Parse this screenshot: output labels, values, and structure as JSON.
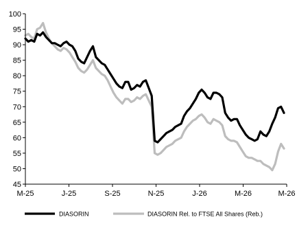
{
  "chart_data": {
    "type": "line",
    "y_ticks": [
      45,
      50,
      55,
      60,
      65,
      70,
      75,
      80,
      85,
      90,
      95,
      100
    ],
    "ylim": [
      45,
      100
    ],
    "x_ticks": [
      "M-25",
      "J-25",
      "S-25",
      "N-25",
      "J-26",
      "M-26",
      "M-26"
    ],
    "grid": false,
    "legend_placement": "bottom",
    "series": [
      {
        "name": "DIASORIN",
        "color": "#000000",
        "values": [
          92.0,
          91.0,
          91.5,
          91.0,
          93.5,
          93.0,
          94.0,
          92.5,
          91.5,
          90.5,
          90.5,
          90.0,
          89.5,
          90.5,
          91.0,
          90.0,
          89.5,
          88.0,
          85.5,
          84.5,
          84.0,
          86.0,
          88.0,
          89.5,
          86.0,
          85.0,
          84.0,
          83.5,
          82.0,
          80.5,
          79.0,
          77.5,
          76.5,
          76.0,
          78.0,
          78.0,
          75.5,
          76.0,
          77.0,
          76.5,
          78.0,
          78.5,
          76.0,
          73.5,
          59.0,
          58.5,
          59.5,
          60.5,
          61.5,
          62.0,
          62.5,
          63.5,
          64.0,
          64.5,
          67.0,
          68.5,
          69.5,
          71.0,
          72.5,
          74.5,
          75.5,
          74.5,
          73.0,
          72.5,
          74.5,
          74.5,
          74.0,
          73.0,
          68.0,
          66.5,
          65.5,
          66.0,
          66.0,
          64.0,
          62.5,
          61.0,
          60.0,
          59.5,
          59.0,
          59.5,
          62.0,
          61.0,
          60.5,
          62.0,
          64.5,
          66.5,
          69.5,
          70.0,
          68.0
        ]
      },
      {
        "name": "DIASORIN Rel. to FTSE All Shares (Reb.)",
        "color": "#bdbdbd",
        "values": [
          93.0,
          93.5,
          92.5,
          92.0,
          95.0,
          95.5,
          97.0,
          94.0,
          92.0,
          90.5,
          89.5,
          88.5,
          88.0,
          89.0,
          88.5,
          87.5,
          86.0,
          84.5,
          82.5,
          81.5,
          81.0,
          82.0,
          83.5,
          85.0,
          82.5,
          81.5,
          80.5,
          80.0,
          78.5,
          76.5,
          74.5,
          73.0,
          72.0,
          71.0,
          72.5,
          72.5,
          71.5,
          72.0,
          73.0,
          72.5,
          73.5,
          74.0,
          72.0,
          70.0,
          55.0,
          54.5,
          55.0,
          56.0,
          57.0,
          57.5,
          58.0,
          59.0,
          59.5,
          60.0,
          62.0,
          63.5,
          64.5,
          65.5,
          66.0,
          67.0,
          67.5,
          66.5,
          65.0,
          64.5,
          66.0,
          65.5,
          65.0,
          64.0,
          60.5,
          59.5,
          59.0,
          59.0,
          58.5,
          57.0,
          55.5,
          54.0,
          53.5,
          53.5,
          53.0,
          52.5,
          52.5,
          51.5,
          51.0,
          50.5,
          49.5,
          51.5,
          55.5,
          58.0,
          56.5
        ]
      }
    ]
  }
}
